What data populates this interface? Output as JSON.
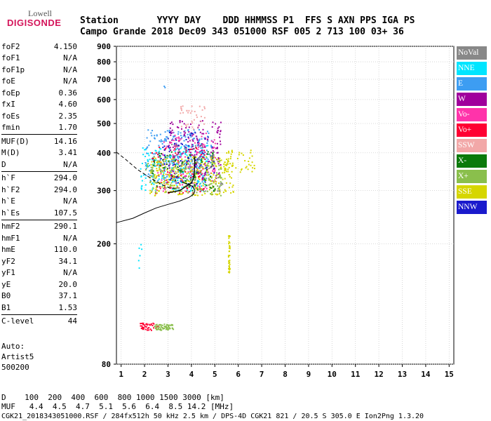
{
  "logo": {
    "line1": "Lowell",
    "line2": "DIGISONDE"
  },
  "header": {
    "row1": "Station       YYYY DAY    DDD HHMMSS P1  FFS S AXN PPS IGA PS",
    "row2": "Campo Grande 2018 Dec09 343 051000 RSF 005 2 713 100 03+ 36"
  },
  "params": [
    {
      "name": "foF2",
      "value": "4.150"
    },
    {
      "name": "foF1",
      "value": "N/A"
    },
    {
      "name": "foF1p",
      "value": "N/A"
    },
    {
      "name": "foE",
      "value": "N/A"
    },
    {
      "name": "foEp",
      "value": "0.36"
    },
    {
      "name": "fxI",
      "value": "4.60"
    },
    {
      "name": "foEs",
      "value": "2.35"
    },
    {
      "name": "fmin",
      "value": "1.70"
    },
    {
      "sep": true
    },
    {
      "name": "MUF(D)",
      "value": "14.16"
    },
    {
      "name": "M(D)",
      "value": "3.41"
    },
    {
      "name": "D",
      "value": "N/A"
    },
    {
      "sep": true
    },
    {
      "name": "h`F",
      "value": "294.0"
    },
    {
      "name": "h`F2",
      "value": "294.0"
    },
    {
      "name": "h`E",
      "value": "N/A"
    },
    {
      "name": "h`Es",
      "value": "107.5"
    },
    {
      "sep": true
    },
    {
      "name": "hmF2",
      "value": "290.1"
    },
    {
      "name": "hmF1",
      "value": "N/A"
    },
    {
      "name": "hmE",
      "value": "110.0"
    },
    {
      "name": "yF2",
      "value": "34.1"
    },
    {
      "name": "yF1",
      "value": "N/A"
    },
    {
      "name": "yE",
      "value": "20.0"
    },
    {
      "name": "B0",
      "value": "37.1"
    },
    {
      "name": "B1",
      "value": "1.53"
    },
    {
      "sep": true
    },
    {
      "name": "C-level",
      "value": "44"
    }
  ],
  "auto": {
    "line1": "Auto:",
    "line2": "Artist5",
    "line3": "500200"
  },
  "footer": {
    "row1": "D    100  200  400  600  800 1000 1500 3000 [km]",
    "row2": "MUF   4.4  4.5  4.7  5.1  5.6  6.4  8.5 14.2 [MHz]",
    "row3": "CGK21_2018343051000.RSF / 284fx512h 50 kHz 2.5 km / DPS-4D CGK21 821 / 20.5 S 305.0 E Ion2Png 1.3.20"
  },
  "legend": [
    {
      "label": "NoVal",
      "color": "#888888"
    },
    {
      "label": "NNE",
      "color": "#00e5ff"
    },
    {
      "label": "E",
      "color": "#3d9df2"
    },
    {
      "label": "W",
      "color": "#a0009c"
    },
    {
      "label": "Vo-",
      "color": "#ff33aa"
    },
    {
      "label": "Vo+",
      "color": "#ff0033"
    },
    {
      "label": "SSW",
      "color": "#f2a8a8"
    },
    {
      "label": "X-",
      "color": "#0b7a0b"
    },
    {
      "label": "X+",
      "color": "#8abf4c"
    },
    {
      "label": "SSE",
      "color": "#d6d600"
    },
    {
      "label": "NNW",
      "color": "#1a1acc"
    }
  ],
  "chart_data": {
    "type": "scatter",
    "x_ticks": [
      1,
      2,
      3,
      4,
      5,
      6,
      7,
      8,
      9,
      10,
      11,
      12,
      13,
      14,
      15
    ],
    "y_ticks": [
      80,
      200,
      300,
      400,
      500,
      600,
      700,
      800,
      900
    ],
    "xlim": [
      0.8,
      15.2
    ],
    "ylim": [
      80,
      900
    ],
    "y_scale": "log",
    "grid": true,
    "legend_placement": "right",
    "clusters": [
      {
        "series": "E",
        "xr": [
          2.0,
          4.9
        ],
        "yr": [
          320,
          480
        ],
        "n": 260
      },
      {
        "series": "NNE",
        "xr": [
          1.8,
          4.7
        ],
        "yr": [
          300,
          430
        ],
        "n": 200
      },
      {
        "series": "W",
        "xr": [
          3.0,
          5.3
        ],
        "yr": [
          330,
          520
        ],
        "n": 180
      },
      {
        "series": "Vo-",
        "xr": [
          2.5,
          5.0
        ],
        "yr": [
          300,
          470
        ],
        "n": 130
      },
      {
        "series": "Vo+",
        "xr": [
          2.2,
          4.6
        ],
        "yr": [
          295,
          420
        ],
        "n": 80
      },
      {
        "series": "SSE",
        "xr": [
          2.2,
          5.8
        ],
        "yr": [
          290,
          390
        ],
        "n": 300
      },
      {
        "series": "X+",
        "xr": [
          2.0,
          5.3
        ],
        "yr": [
          290,
          380
        ],
        "n": 140
      },
      {
        "series": "X-",
        "xr": [
          2.3,
          5.0
        ],
        "yr": [
          300,
          410
        ],
        "n": 80
      },
      {
        "series": "NoVal",
        "xr": [
          2.6,
          5.3
        ],
        "yr": [
          300,
          430
        ],
        "n": 60
      },
      {
        "series": "NNW",
        "xr": [
          2.6,
          5.0
        ],
        "yr": [
          310,
          470
        ],
        "n": 60
      },
      {
        "series": "SSW",
        "xr": [
          3.5,
          4.6
        ],
        "yr": [
          480,
          580
        ],
        "n": 35
      },
      {
        "series": "SSE",
        "xr": [
          5.3,
          6.7
        ],
        "yr": [
          345,
          410
        ],
        "n": 45
      },
      {
        "series": "Vo+",
        "xr": [
          1.75,
          2.6
        ],
        "yr": [
          104,
          110
        ],
        "n": 40
      },
      {
        "series": "X+",
        "xr": [
          2.4,
          3.2
        ],
        "yr": [
          104,
          109
        ],
        "n": 60
      },
      {
        "series": "SSE",
        "xr": [
          5.55,
          5.62
        ],
        "yr": [
          160,
          215
        ],
        "n": 40
      },
      {
        "series": "NNE",
        "xr": [
          1.7,
          1.85
        ],
        "yr": [
          165,
          200
        ],
        "n": 6
      },
      {
        "series": "E",
        "xr": [
          2.8,
          2.9
        ],
        "yr": [
          660,
          670
        ],
        "n": 2
      }
    ],
    "curves": {
      "virtual_height_trace": [
        [
          3.0,
          295
        ],
        [
          3.5,
          300
        ],
        [
          4.0,
          318
        ],
        [
          4.1,
          330
        ],
        [
          4.13,
          350
        ],
        [
          4.15,
          390
        ]
      ],
      "profile": [
        [
          0.8,
          235
        ],
        [
          1.5,
          243
        ],
        [
          2.0,
          253
        ],
        [
          2.5,
          263
        ],
        [
          3.0,
          270
        ],
        [
          3.5,
          277
        ],
        [
          3.9,
          285
        ],
        [
          4.1,
          292
        ],
        [
          4.15,
          300
        ],
        [
          4.05,
          310
        ],
        [
          3.6,
          320
        ]
      ],
      "dashed": [
        [
          0.8,
          402
        ],
        [
          1.2,
          380
        ],
        [
          1.7,
          352
        ],
        [
          2.2,
          332
        ],
        [
          2.7,
          315
        ],
        [
          3.1,
          305
        ],
        [
          3.5,
          306
        ]
      ]
    }
  }
}
